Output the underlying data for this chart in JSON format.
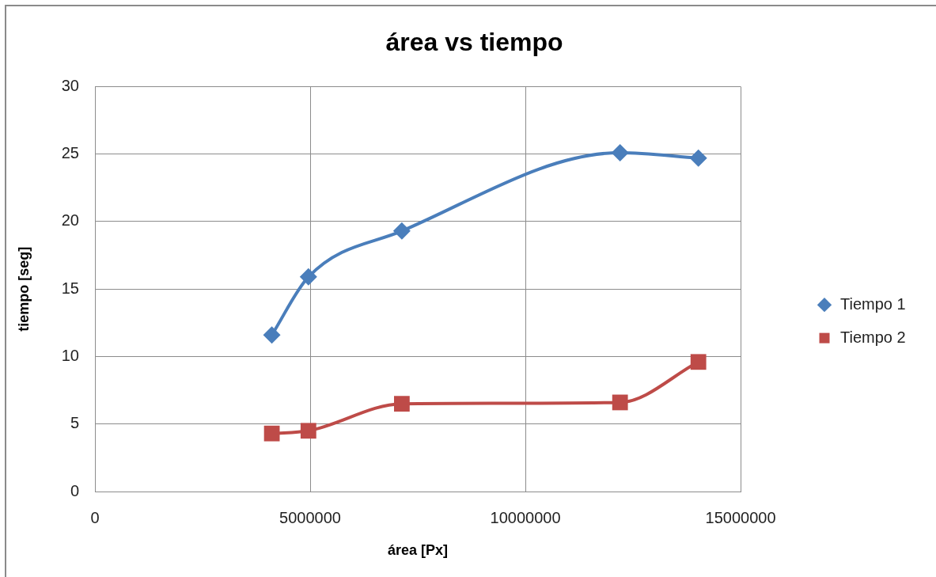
{
  "chart_data": {
    "type": "line",
    "title": "área vs tiempo",
    "xlabel": "área [Px]",
    "ylabel": "tiempo [seg]",
    "x": [
      4110000,
      4960000,
      7130000,
      12200000,
      14020000
    ],
    "series": [
      {
        "name": "Tiempo 1",
        "color": "#4a7ebb",
        "marker": "diamond",
        "values": [
          11.6,
          15.9,
          19.3,
          25.1,
          24.7
        ]
      },
      {
        "name": "Tiempo 2",
        "color": "#be4b48",
        "marker": "square",
        "values": [
          4.3,
          4.5,
          6.5,
          6.6,
          9.6
        ]
      }
    ],
    "xlim": [
      0,
      15000000
    ],
    "xticks": [
      0,
      5000000,
      10000000,
      15000000
    ],
    "ylim": [
      0,
      30
    ],
    "yticks": [
      0,
      5,
      10,
      15,
      20,
      25,
      30
    ],
    "grid": true,
    "legend": "right"
  }
}
